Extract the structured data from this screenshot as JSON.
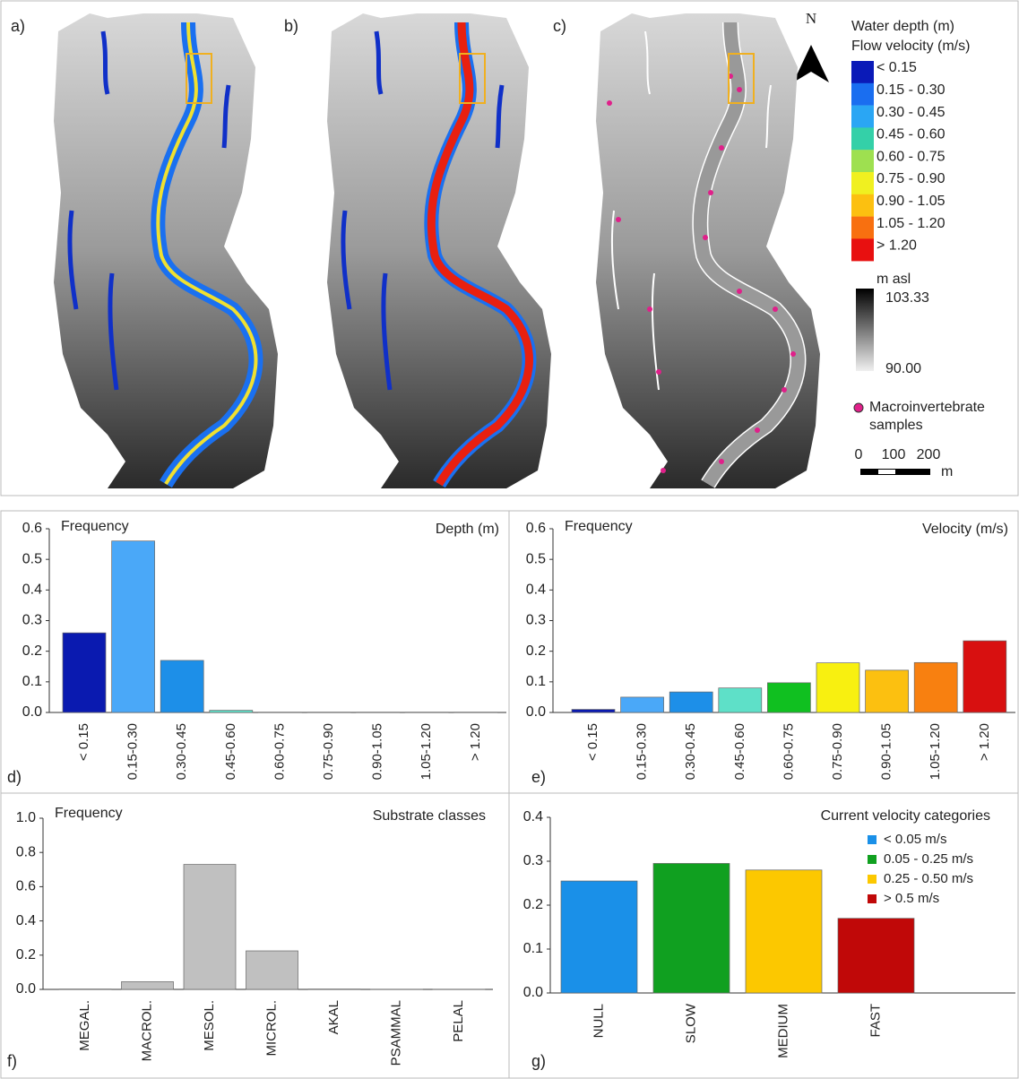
{
  "maps": {
    "panels": [
      {
        "label": "a)"
      },
      {
        "label": "b)"
      },
      {
        "label": "c)"
      }
    ],
    "north": "N",
    "legend": {
      "title1": "Water depth (m)",
      "title2": "Flow velocity (m/s)",
      "classes": [
        {
          "label": "< 0.15",
          "color": "#0a1ab8"
        },
        {
          "label": "0.15 - 0.30",
          "color": "#1a6ef0"
        },
        {
          "label": "0.30 - 0.45",
          "color": "#2aa6f4"
        },
        {
          "label": "0.45 - 0.60",
          "color": "#34d0a8"
        },
        {
          "label": "0.60 - 0.75",
          "color": "#9ee050"
        },
        {
          "label": "0.75 - 0.90",
          "color": "#f0f020"
        },
        {
          "label": "0.90 - 1.05",
          "color": "#fcc010"
        },
        {
          "label": "1.05 - 1.20",
          "color": "#f87010"
        },
        {
          "label": "> 1.20",
          "color": "#e81010"
        }
      ],
      "elev_title": "m asl",
      "elev_max": "103.33",
      "elev_min": "90.00",
      "samples_1": "Macroinvertebrate",
      "samples_2": "samples",
      "scale_ticks": [
        "0",
        "100",
        "200"
      ],
      "scale_unit": "m"
    }
  },
  "chart_data": [
    {
      "type": "bar",
      "label": "d)",
      "title": "Depth (m)",
      "ylabel": "Frequency",
      "categories": [
        "< 0.15",
        "0.15-0.30",
        "0.30-0.45",
        "0.45-0.60",
        "0.60-0.75",
        "0.75-0.90",
        "0.90-1.05",
        "1.05-1.20",
        "> 1.20"
      ],
      "values": [
        0.26,
        0.56,
        0.17,
        0.007,
        0.001,
        0.001,
        0.001,
        0.001,
        0.001
      ],
      "colors": [
        "#0a1ab0",
        "#4aa8f8",
        "#1d8fe8",
        "#5ee0c8",
        "#39c040",
        "#f0f020",
        "#fcc010",
        "#f88010",
        "#d81010"
      ],
      "ylim": [
        0,
        0.6
      ],
      "yticks": [
        {
          "value": 0,
          "label": "0.0"
        },
        0.1,
        0.2,
        0.3,
        0.4,
        0.5,
        0.6
      ]
    },
    {
      "type": "bar",
      "label": "e)",
      "title": "Velocity (m/s)",
      "ylabel": "Frequency",
      "categories": [
        "< 0.15",
        "0.15-0.30",
        "0.30-0.45",
        "0.45-0.60",
        "0.60-0.75",
        "0.75-0.90",
        "0.90-1.05",
        "1.05-1.20",
        "> 1.20"
      ],
      "values": [
        0.01,
        0.05,
        0.067,
        0.08,
        0.097,
        0.162,
        0.138,
        0.163,
        0.234
      ],
      "colors": [
        "#0a1ab0",
        "#4aa8f8",
        "#1d8fe8",
        "#5ee0c8",
        "#10c020",
        "#f8f010",
        "#fcc010",
        "#f88010",
        "#d81010"
      ],
      "ylim": [
        0,
        0.6
      ],
      "yticks": [
        {
          "value": 0,
          "label": "0.0"
        },
        0.1,
        0.2,
        0.3,
        0.4,
        0.5,
        0.6
      ]
    },
    {
      "type": "bar",
      "label": "f)",
      "title": "Substrate classes",
      "ylabel": "Frequency",
      "categories": [
        "MEGAL.",
        "MACROL.",
        "MESOL.",
        "MICROL.",
        "AKAL",
        "PSAMMAL",
        "PELAL"
      ],
      "values": [
        0.002,
        0.045,
        0.73,
        0.225,
        0.002,
        0.001,
        0.001
      ],
      "colors": [
        "#c0c0c0",
        "#c0c0c0",
        "#c0c0c0",
        "#c0c0c0",
        "#c0c0c0",
        "#c0c0c0",
        "#c0c0c0"
      ],
      "ylim": [
        0,
        1
      ],
      "yticks": [
        {
          "value": 0,
          "label": "0.0"
        },
        0.2,
        0.4,
        0.6,
        0.8,
        {
          "value": 1,
          "label": "1.0"
        }
      ]
    },
    {
      "type": "bar",
      "label": "g)",
      "title": "Current velocity categories",
      "categories": [
        "NULL",
        "SLOW",
        "MEDIUM",
        "FAST"
      ],
      "values": [
        0.255,
        0.295,
        0.28,
        0.17
      ],
      "colors": [
        "#1a90e8",
        "#10a020",
        "#fcc800",
        "#c00808"
      ],
      "legend": [
        {
          "name": "< 0.05 m/s",
          "color": "#1a90e8"
        },
        {
          "name": "0.05 - 0.25 m/s",
          "color": "#10a020"
        },
        {
          "name": "0.25 - 0.50 m/s",
          "color": "#fcc800"
        },
        {
          "name": "> 0.5 m/s",
          "color": "#c00808"
        }
      ],
      "ylim": [
        0,
        0.4
      ],
      "yticks": [
        {
          "value": 0,
          "label": "0.0"
        },
        0.1,
        0.2,
        0.3,
        0.4
      ]
    }
  ]
}
